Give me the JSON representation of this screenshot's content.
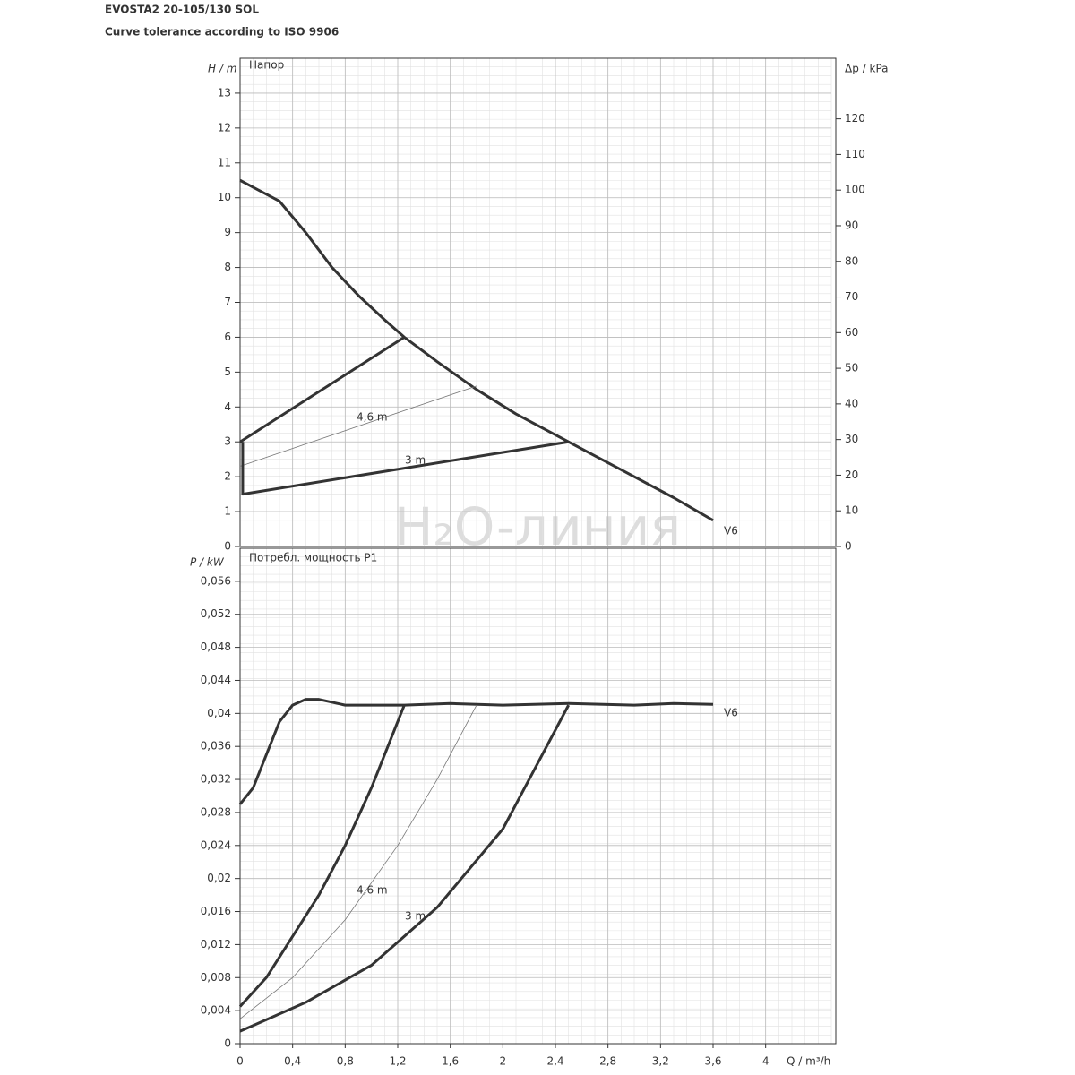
{
  "header": {
    "title": "EVOSTA2 20-105/130 SOL",
    "subtitle": "Curve tolerance according to ISO 9906"
  },
  "watermark": "H₂O-линия",
  "chart_data": [
    {
      "type": "line",
      "ylabel": "H / m",
      "y2label": "Δp / kPa",
      "panel_title": "Напор",
      "xlim": [
        0,
        4.5
      ],
      "ylim": [
        0,
        14
      ],
      "y2lim": [
        0,
        137
      ],
      "yticks": [
        0,
        1,
        2,
        3,
        4,
        5,
        6,
        7,
        8,
        9,
        10,
        11,
        12,
        13
      ],
      "y2ticks": [
        0,
        10,
        20,
        30,
        40,
        50,
        60,
        70,
        80,
        90,
        100,
        110,
        120
      ],
      "grid": true,
      "series": [
        {
          "name": "V6",
          "color": "#333333",
          "line_width": 3,
          "x": [
            0,
            0.1,
            0.3,
            0.5,
            0.7,
            0.9,
            1.1,
            1.25,
            1.5,
            1.8,
            2.1,
            2.5,
            2.9,
            3.3,
            3.6
          ],
          "values": [
            10.5,
            10.3,
            9.9,
            9.0,
            8.0,
            7.2,
            6.5,
            6.0,
            5.3,
            4.5,
            3.8,
            3.0,
            2.2,
            1.4,
            0.75
          ]
        },
        {
          "color": "#333333",
          "line_width": 3,
          "x": [
            0,
            1.25
          ],
          "values": [
            3,
            6
          ]
        },
        {
          "name": "4,6 m",
          "color": "#777777",
          "line_width": 0.8,
          "x": [
            0,
            1.8
          ],
          "values": [
            2.3,
            4.6
          ]
        },
        {
          "name": "3 m",
          "color": "#333333",
          "line_width": 3,
          "x": [
            0.02,
            0.02,
            2.5
          ],
          "values": [
            3,
            1.5,
            3
          ]
        }
      ]
    },
    {
      "type": "line",
      "ylabel": "P / kW",
      "panel_title": "Потребл. мощность P1",
      "xlabel": "Q / m³/h",
      "xlim": [
        0,
        4.5
      ],
      "ylim": [
        0,
        0.06
      ],
      "xticks": [
        0,
        {
          "value": 0.4,
          "label": "0,4"
        },
        {
          "value": 0.8,
          "label": "0,8"
        },
        {
          "value": 1.2,
          "label": "1,2"
        },
        {
          "value": 1.6,
          "label": "1,6"
        },
        2,
        {
          "value": 2.4,
          "label": "2,4"
        },
        {
          "value": 2.8,
          "label": "2,8"
        },
        {
          "value": 3.2,
          "label": "3,2"
        },
        {
          "value": 3.6,
          "label": "3,6"
        },
        4
      ],
      "yticks": [
        0,
        {
          "value": 0.004,
          "label": "0,004"
        },
        {
          "value": 0.008,
          "label": "0,008"
        },
        {
          "value": 0.012,
          "label": "0,012"
        },
        {
          "value": 0.016,
          "label": "0,016"
        },
        {
          "value": 0.02,
          "label": "0,02"
        },
        {
          "value": 0.024,
          "label": "0,024"
        },
        {
          "value": 0.028,
          "label": "0,028"
        },
        {
          "value": 0.032,
          "label": "0,032"
        },
        {
          "value": 0.036,
          "label": "0,036"
        },
        {
          "value": 0.04,
          "label": "0,04"
        },
        {
          "value": 0.044,
          "label": "0,044"
        },
        {
          "value": 0.048,
          "label": "0,048"
        },
        {
          "value": 0.052,
          "label": "0,052"
        },
        {
          "value": 0.056,
          "label": "0,056"
        }
      ],
      "grid": true,
      "series": [
        {
          "name": "V6",
          "color": "#333333",
          "line_width": 3,
          "x": [
            0,
            0.1,
            0.2,
            0.3,
            0.4,
            0.5,
            0.6,
            0.8,
            1,
            1.25,
            1.6,
            2,
            2.5,
            3,
            3.3,
            3.6
          ],
          "values": [
            0.029,
            0.031,
            0.035,
            0.039,
            0.041,
            0.0417,
            0.0417,
            0.041,
            0.041,
            0.041,
            0.0412,
            0.041,
            0.0412,
            0.041,
            0.0412,
            0.0411
          ]
        },
        {
          "color": "#333333",
          "line_width": 3,
          "x": [
            0,
            0.2,
            0.4,
            0.6,
            0.8,
            1,
            1.25
          ],
          "values": [
            0.0045,
            0.008,
            0.013,
            0.018,
            0.024,
            0.031,
            0.041
          ]
        },
        {
          "name": "4,6 m",
          "color": "#777777",
          "line_width": 0.8,
          "x": [
            0,
            0.4,
            0.8,
            1.2,
            1.5,
            1.8
          ],
          "values": [
            0.003,
            0.008,
            0.015,
            0.024,
            0.032,
            0.041
          ]
        },
        {
          "name": "3 m",
          "color": "#333333",
          "line_width": 3,
          "x": [
            0,
            0.5,
            1,
            1.5,
            2,
            2.5
          ],
          "values": [
            0.0015,
            0.005,
            0.0095,
            0.0165,
            0.026,
            0.041
          ]
        }
      ]
    }
  ]
}
